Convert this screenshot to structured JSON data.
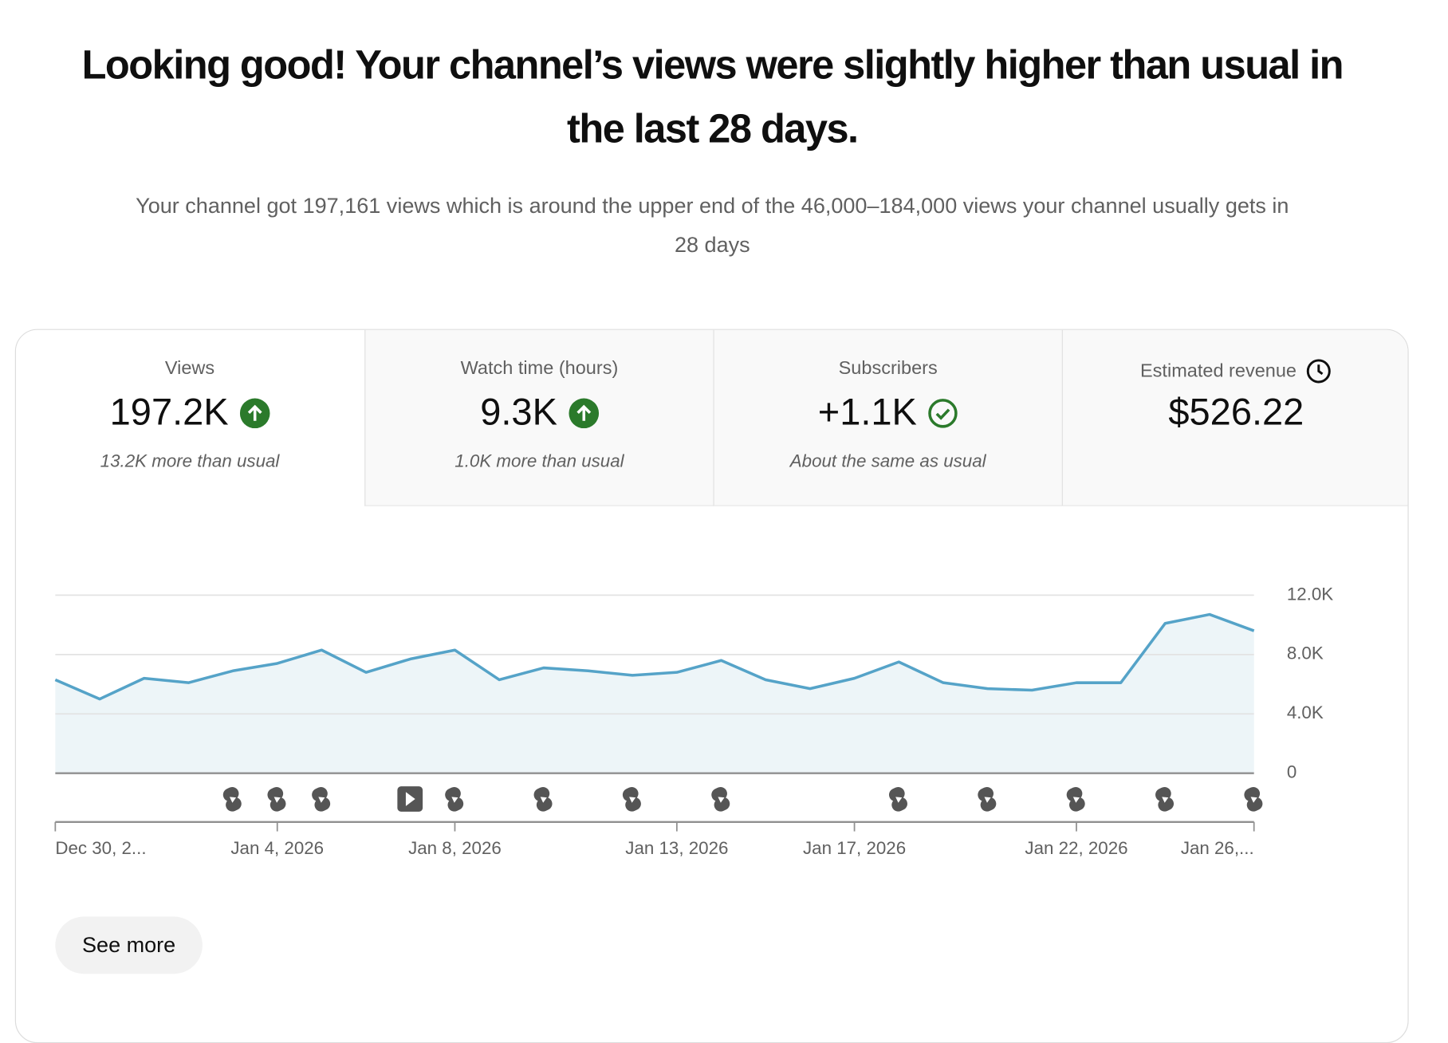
{
  "header": {
    "title": "Looking good! Your channel’s views were slightly higher than usual in the last 28 days.",
    "subtitle": "Your channel got 197,161 views which is around the upper end of the 46,000–184,000 views your channel usually gets in 28 days"
  },
  "metrics": [
    {
      "label": "Views",
      "value": "197.2K",
      "note": "13.2K more than usual"
    },
    {
      "label": "Watch time (hours)",
      "value": "9.3K",
      "note": "1.0K more than usual"
    },
    {
      "label": "Subscribers",
      "value": "+1.1K",
      "note": "About the same as usual"
    },
    {
      "label": "Estimated revenue",
      "value": "$526.22"
    }
  ],
  "chart_data": {
    "type": "line",
    "categories": [
      "Dec 30, 2...",
      null,
      null,
      null,
      null,
      "Jan 4, 2026",
      null,
      null,
      null,
      "Jan 8, 2026",
      null,
      null,
      null,
      null,
      "Jan 13, 2026",
      null,
      null,
      null,
      "Jan 17, 2026",
      null,
      null,
      null,
      null,
      "Jan 22, 2026",
      null,
      null,
      null,
      "Jan 26,..."
    ],
    "series": [
      {
        "name": "Views",
        "color": "#55a3c8",
        "values": [
          6300,
          5000,
          6400,
          6100,
          6900,
          7400,
          8300,
          6800,
          7700,
          8300,
          6300,
          7100,
          6900,
          6600,
          6800,
          7600,
          6300,
          5700,
          6400,
          7500,
          6100,
          5700,
          5600,
          6100,
          6100,
          10100,
          10700,
          9600
        ]
      }
    ],
    "area": true,
    "area_color": "#edf5f8",
    "ylim": [
      0,
      12000
    ],
    "yticks": [
      0,
      {
        "value": 4000,
        "label": "4.0K"
      },
      {
        "value": 8000,
        "label": "8.0K"
      },
      {
        "value": 12000,
        "label": "12.0K"
      }
    ],
    "grid": true
  },
  "button": {
    "label": "See more"
  }
}
